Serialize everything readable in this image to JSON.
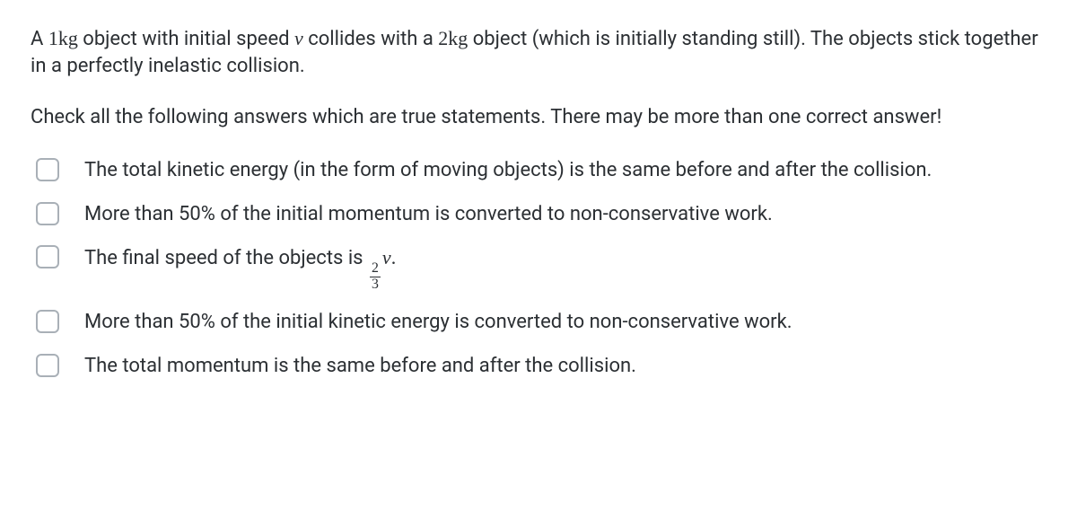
{
  "paragraphs": {
    "p1_a": "A ",
    "p1_mass1": "1kg",
    "p1_b": " object with initial speed ",
    "p1_v": "v",
    "p1_c": " collides with a ",
    "p1_mass2": "2kg",
    "p1_d": " object (which is initially standing still). The objects stick together in a perfectly inelastic collision.",
    "p2": "Check all the following answers which are true statements.  There may be more than one correct answer!"
  },
  "options": {
    "o1": "The total kinetic energy (in the form of moving objects) is the same before and after the collision.",
    "o2": "More than 50% of the initial momentum is converted to non-conservative work.",
    "o3_a": "The final speed of the objects is ",
    "o3_num": "2",
    "o3_den": "3",
    "o3_v": "v",
    "o3_dot": ".",
    "o4": "More than 50% of the initial kinetic energy is converted to non-conservative work.",
    "o5": "The total momentum is the same before and after the collision."
  }
}
